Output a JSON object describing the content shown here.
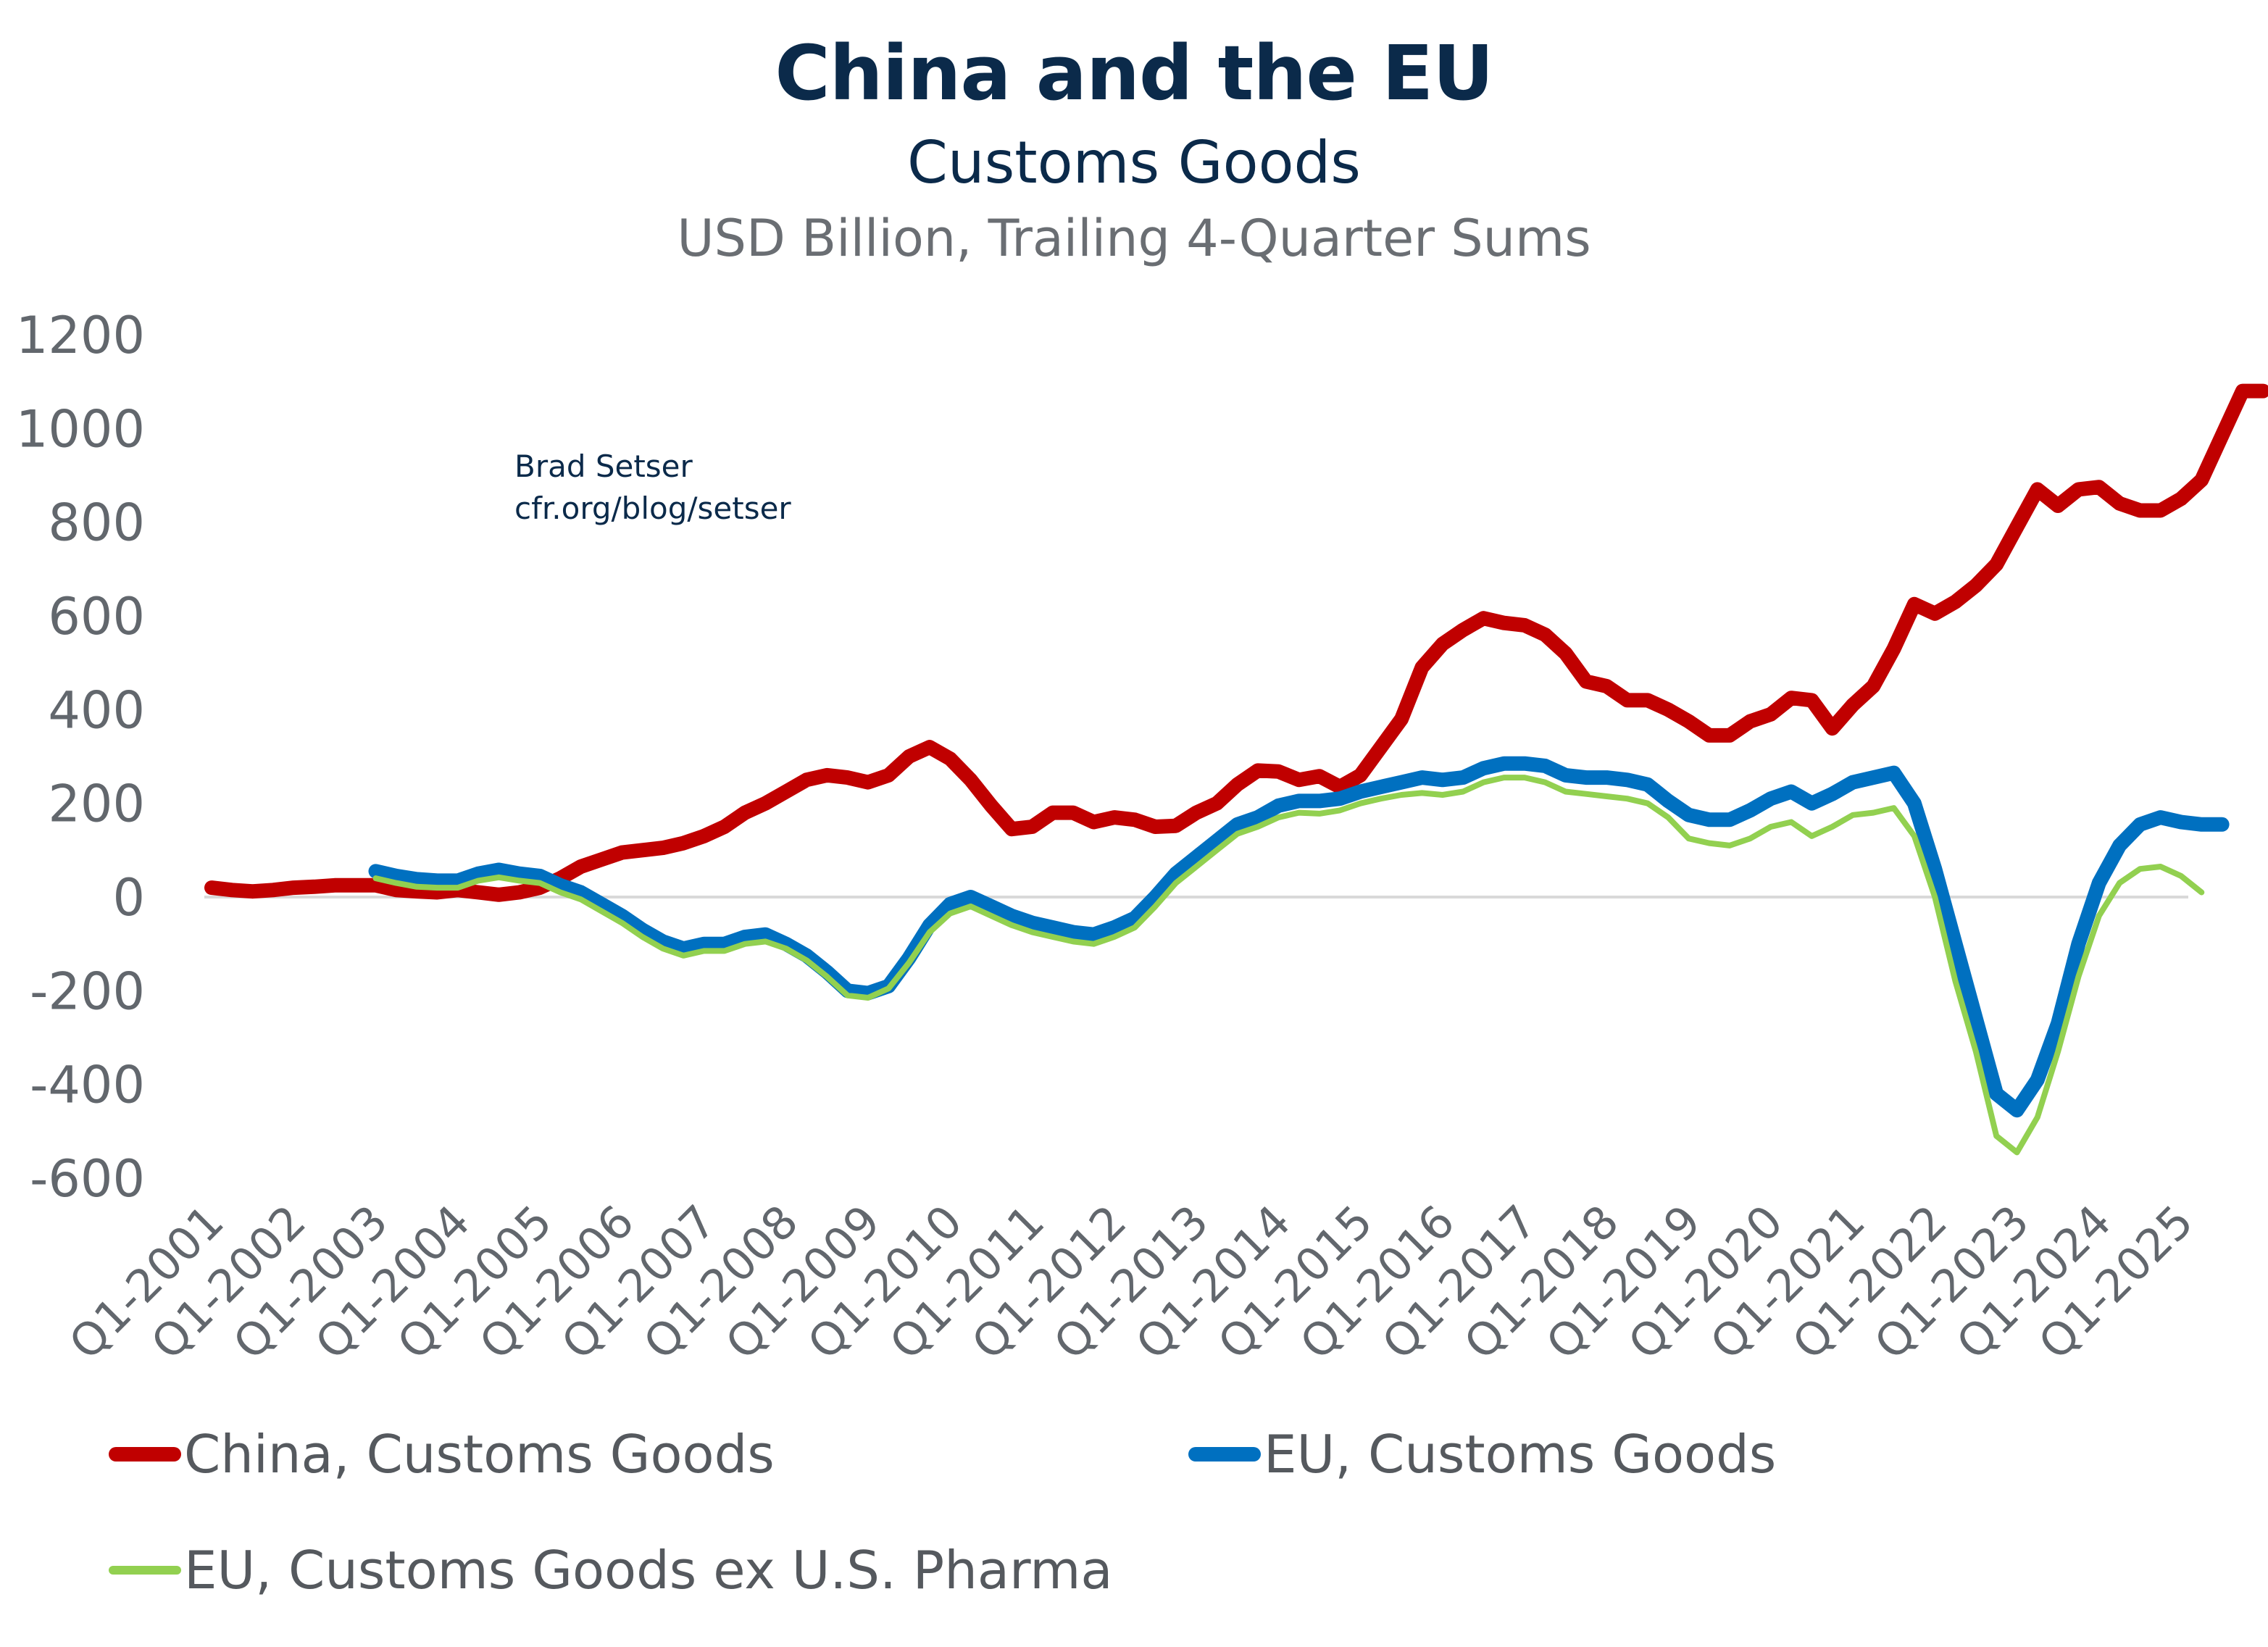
{
  "chart_data": {
    "type": "line",
    "title": "China and the EU",
    "subtitle": "Customs Goods",
    "units_label": "USD Billion, Trailing 4-Quarter Sums",
    "annotation": [
      "Brad Setser",
      "cfr.org/blog/setser"
    ],
    "xlabel": "",
    "ylabel": "",
    "ylim": [
      -600,
      1200
    ],
    "yticks": [
      1200,
      1000,
      800,
      600,
      400,
      200,
      0,
      -200,
      -400,
      -600
    ],
    "grid": false,
    "zero_line": true,
    "legend_position": "bottom",
    "x_start": "Q1-2001",
    "x_frequency": "quarterly",
    "x_count": 97,
    "xtick_labels": [
      "Q1-2001",
      "Q1-2002",
      "Q1-2003",
      "Q1-2004",
      "Q1-2005",
      "Q1-2006",
      "Q1-2007",
      "Q1-2008",
      "Q1-2009",
      "Q1-2010",
      "Q1-2011",
      "Q1-2012",
      "Q1-2013",
      "Q1-2014",
      "Q1-2015",
      "Q1-2016",
      "Q1-2017",
      "Q1-2018",
      "Q1-2019",
      "Q1-2020",
      "Q1-2021",
      "Q1-2022",
      "Q1-2023",
      "Q1-2024",
      "Q1-2025"
    ],
    "series": [
      {
        "name": "China, Customs Goods",
        "color": "#c00000",
        "start_index": 0,
        "values": [
          20,
          15,
          12,
          15,
          20,
          22,
          25,
          25,
          25,
          15,
          12,
          10,
          15,
          10,
          5,
          10,
          20,
          40,
          65,
          80,
          95,
          100,
          105,
          115,
          130,
          150,
          180,
          200,
          225,
          250,
          260,
          255,
          245,
          260,
          300,
          320,
          295,
          250,
          195,
          145,
          150,
          180,
          180,
          160,
          170,
          165,
          150,
          152,
          180,
          200,
          240,
          270,
          268,
          250,
          258,
          235,
          260,
          320,
          380,
          490,
          540,
          570,
          595,
          585,
          580,
          560,
          520,
          460,
          450,
          420,
          420,
          400,
          375,
          345,
          345,
          375,
          390,
          425,
          420,
          360,
          410,
          450,
          530,
          625,
          605,
          630,
          665,
          710,
          790,
          870,
          835,
          870,
          875,
          840,
          825,
          825,
          850,
          890,
          985,
          1080,
          1080
        ]
      },
      {
        "name": "EU, Customs Goods",
        "color": "#0070c0",
        "start_index": 8,
        "values": [
          55,
          45,
          38,
          35,
          35,
          50,
          58,
          50,
          45,
          25,
          10,
          -15,
          -40,
          -70,
          -95,
          -110,
          -100,
          -100,
          -85,
          -80,
          -100,
          -125,
          -160,
          -200,
          -205,
          -190,
          -130,
          -60,
          -15,
          0,
          -20,
          -40,
          -55,
          -65,
          -75,
          -80,
          -65,
          -45,
          0,
          50,
          85,
          120,
          155,
          170,
          195,
          205,
          205,
          210,
          225,
          235,
          245,
          255,
          250,
          255,
          275,
          285,
          285,
          280,
          260,
          255,
          255,
          250,
          240,
          205,
          175,
          165,
          165,
          185,
          210,
          225,
          200,
          220,
          245,
          255,
          265,
          200,
          60,
          -100,
          -260,
          -420,
          -455,
          -390,
          -270,
          -100,
          30,
          110,
          155,
          170,
          160,
          155,
          155
        ]
      },
      {
        "name": "EU, Customs Goods ex U.S. Pharma",
        "color": "#92d050",
        "start_index": 8,
        "values": [
          40,
          30,
          22,
          20,
          20,
          35,
          42,
          35,
          30,
          10,
          -5,
          -30,
          -55,
          -85,
          -110,
          -125,
          -115,
          -115,
          -100,
          -95,
          -110,
          -135,
          -170,
          -210,
          -215,
          -195,
          -140,
          -75,
          -35,
          -20,
          -40,
          -60,
          -75,
          -85,
          -95,
          -100,
          -85,
          -65,
          -20,
          30,
          65,
          100,
          135,
          150,
          170,
          180,
          178,
          185,
          200,
          210,
          218,
          222,
          218,
          225,
          245,
          255,
          255,
          245,
          225,
          220,
          215,
          210,
          200,
          170,
          125,
          115,
          110,
          125,
          150,
          160,
          130,
          150,
          175,
          180,
          190,
          130,
          0,
          -180,
          -330,
          -510,
          -545,
          -470,
          -330,
          -170,
          -40,
          30,
          60,
          65,
          45,
          10
        ]
      }
    ]
  },
  "legend": {
    "items": [
      {
        "label": "China, Customs Goods",
        "color": "#c00000"
      },
      {
        "label": "EU, Customs Goods",
        "color": "#0070c0"
      },
      {
        "label": "EU, Customs Goods ex U.S. Pharma",
        "color": "#92d050"
      }
    ]
  }
}
